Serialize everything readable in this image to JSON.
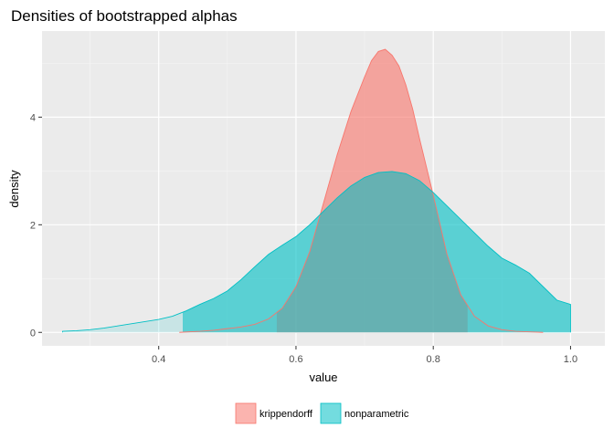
{
  "chart_data": {
    "type": "area",
    "title": "Densities of bootstrapped alphas",
    "xlabel": "value",
    "ylabel": "density",
    "xlim": [
      0.23,
      1.05
    ],
    "ylim": [
      -0.25,
      5.6
    ],
    "x_ticks": [
      0.4,
      0.6,
      0.8,
      1.0
    ],
    "x_tick_labels": [
      "0.4",
      "0.6",
      "0.8",
      "1.0"
    ],
    "y_ticks": [
      0,
      2,
      4
    ],
    "y_tick_labels": [
      "0",
      "2",
      "4"
    ],
    "grid": true,
    "legend_position": "bottom",
    "series": [
      {
        "name": "krippendorff",
        "color": "#F8766D",
        "interval": [
          0.572,
          0.85
        ],
        "x": [
          0.43,
          0.46,
          0.48,
          0.5,
          0.52,
          0.54,
          0.56,
          0.58,
          0.6,
          0.62,
          0.64,
          0.66,
          0.68,
          0.7,
          0.71,
          0.72,
          0.73,
          0.74,
          0.75,
          0.76,
          0.77,
          0.78,
          0.8,
          0.82,
          0.84,
          0.86,
          0.88,
          0.9,
          0.92,
          0.94,
          0.96
        ],
        "y": [
          0.0,
          0.02,
          0.04,
          0.07,
          0.1,
          0.15,
          0.25,
          0.45,
          0.85,
          1.5,
          2.4,
          3.3,
          4.1,
          4.75,
          5.05,
          5.22,
          5.26,
          5.15,
          4.95,
          4.6,
          4.15,
          3.6,
          2.55,
          1.45,
          0.7,
          0.3,
          0.12,
          0.05,
          0.02,
          0.01,
          0.0
        ]
      },
      {
        "name": "nonparametric",
        "color": "#00BFC4",
        "interval": [
          0.435,
          1.0
        ],
        "x": [
          0.26,
          0.28,
          0.3,
          0.32,
          0.34,
          0.36,
          0.38,
          0.4,
          0.42,
          0.44,
          0.46,
          0.48,
          0.5,
          0.52,
          0.54,
          0.56,
          0.58,
          0.6,
          0.62,
          0.64,
          0.66,
          0.68,
          0.7,
          0.72,
          0.74,
          0.76,
          0.78,
          0.8,
          0.82,
          0.84,
          0.86,
          0.88,
          0.9,
          0.92,
          0.94,
          0.96,
          0.98,
          1.0
        ],
        "y": [
          0.02,
          0.03,
          0.05,
          0.08,
          0.12,
          0.16,
          0.2,
          0.24,
          0.3,
          0.4,
          0.52,
          0.63,
          0.77,
          0.98,
          1.22,
          1.45,
          1.62,
          1.78,
          2.0,
          2.25,
          2.5,
          2.72,
          2.88,
          2.97,
          2.99,
          2.95,
          2.82,
          2.6,
          2.35,
          2.1,
          1.85,
          1.6,
          1.38,
          1.25,
          1.1,
          0.85,
          0.6,
          0.52
        ]
      }
    ]
  }
}
